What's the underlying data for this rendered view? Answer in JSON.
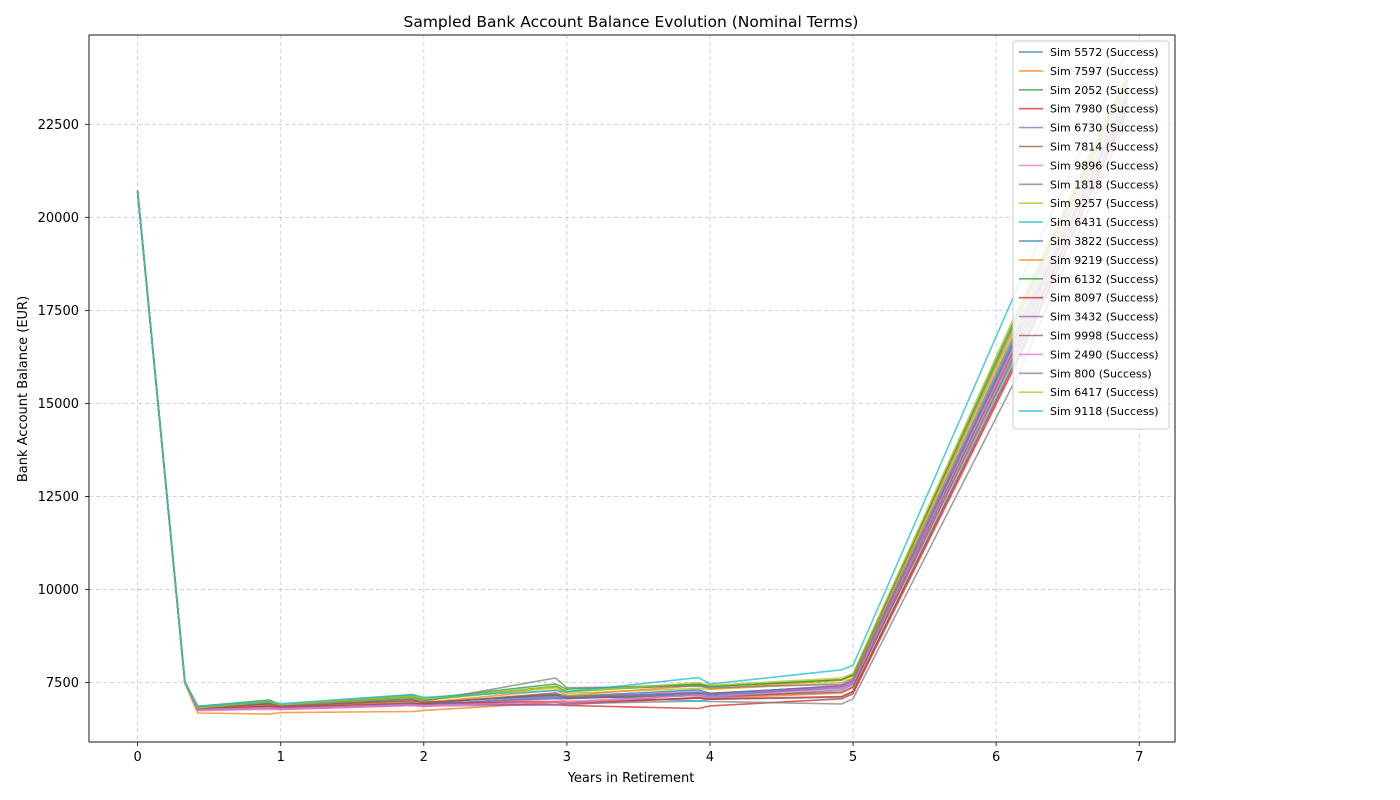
{
  "chart_data": {
    "type": "line",
    "title": "Sampled Bank Account Balance Evolution (Nominal Terms)",
    "xlabel": "Years in Retirement",
    "ylabel": "Bank Account Balance (EUR)",
    "xlim": [
      -0.34,
      7.25
    ],
    "ylim": [
      5900,
      24900
    ],
    "xticks": [
      0,
      1,
      2,
      3,
      4,
      5,
      6,
      7
    ],
    "yticks": [
      7500,
      10000,
      12500,
      15000,
      17500,
      20000,
      22500
    ],
    "grid": true,
    "legend_position": "top-right",
    "x": [
      0,
      0.33,
      0.42,
      0.92,
      1.0,
      1.92,
      2.0,
      2.92,
      3.0,
      3.92,
      4.0,
      4.92,
      5.0,
      6.17,
      6.92
    ],
    "series": [
      {
        "name": "Sim 5572 (Success)",
        "color": "#1f77b4",
        "values": [
          20700,
          7500,
          6820,
          6900,
          6850,
          6990,
          6960,
          7180,
          7120,
          7300,
          7210,
          7400,
          7540,
          17100,
          23200
        ]
      },
      {
        "name": "Sim 7597 (Success)",
        "color": "#ff7f0e",
        "values": [
          20680,
          7480,
          6680,
          6650,
          6690,
          6720,
          6750,
          6960,
          6920,
          7080,
          7060,
          7220,
          7360,
          16900,
          23100
        ]
      },
      {
        "name": "Sim 2052 (Success)",
        "color": "#2ca02c",
        "values": [
          20720,
          7520,
          6860,
          7030,
          6900,
          7160,
          7060,
          7460,
          7320,
          7460,
          7400,
          7560,
          7720,
          17500,
          23700
        ]
      },
      {
        "name": "Sim 7980 (Success)",
        "color": "#d62728",
        "values": [
          20690,
          7490,
          6780,
          6930,
          6870,
          6900,
          6930,
          6900,
          6880,
          6800,
          6870,
          7060,
          7200,
          16300,
          22900
        ]
      },
      {
        "name": "Sim 6730 (Success)",
        "color": "#9467bd",
        "values": [
          20700,
          7500,
          6760,
          6800,
          6780,
          6880,
          6870,
          6900,
          6900,
          7100,
          7080,
          7300,
          7440,
          16700,
          23000
        ]
      },
      {
        "name": "Sim 7814 (Success)",
        "color": "#8c564b",
        "values": [
          20710,
          7510,
          6800,
          6960,
          6830,
          7060,
          6930,
          7220,
          7110,
          7220,
          7200,
          7400,
          7520,
          16800,
          23200
        ]
      },
      {
        "name": "Sim 9896 (Success)",
        "color": "#e377c2",
        "values": [
          20700,
          7500,
          6740,
          6780,
          6770,
          6880,
          6850,
          7060,
          6990,
          7160,
          7110,
          7380,
          7520,
          16900,
          23300
        ]
      },
      {
        "name": "Sim 1818 (Success)",
        "color": "#7f7f7f",
        "values": [
          20700,
          7500,
          6800,
          6870,
          6840,
          6980,
          6960,
          6960,
          6930,
          7000,
          6990,
          6920,
          7060,
          15900,
          22700
        ]
      },
      {
        "name": "Sim 9257 (Success)",
        "color": "#bcbd22",
        "values": [
          20710,
          7510,
          6800,
          7000,
          6880,
          7100,
          7020,
          7360,
          7210,
          7340,
          7310,
          7500,
          7620,
          17300,
          23500
        ]
      },
      {
        "name": "Sim 6431 (Success)",
        "color": "#17becf",
        "values": [
          20700,
          7500,
          6810,
          6900,
          6870,
          6980,
          6970,
          7140,
          7150,
          7000,
          7050,
          7100,
          7260,
          16500,
          23100
        ]
      },
      {
        "name": "Sim 3822 (Success)",
        "color": "#1f77b4",
        "values": [
          20690,
          7490,
          6790,
          6850,
          6820,
          6950,
          6920,
          7080,
          7060,
          7200,
          7160,
          7350,
          7480,
          17000,
          23200
        ]
      },
      {
        "name": "Sim 9219 (Success)",
        "color": "#ff7f0e",
        "values": [
          20700,
          7500,
          6780,
          6900,
          6850,
          6980,
          6960,
          7300,
          7150,
          7420,
          7330,
          7560,
          7680,
          17400,
          23600
        ]
      },
      {
        "name": "Sim 6132 (Success)",
        "color": "#2ca02c",
        "values": [
          20710,
          7510,
          6830,
          6970,
          6900,
          7120,
          7030,
          7400,
          7260,
          7440,
          7390,
          7580,
          7700,
          17600,
          23800
        ]
      },
      {
        "name": "Sim 8097 (Success)",
        "color": "#d62728",
        "values": [
          20700,
          7500,
          6780,
          6860,
          6830,
          6930,
          6920,
          6990,
          6960,
          7080,
          7050,
          7120,
          7260,
          16400,
          22900
        ]
      },
      {
        "name": "Sim 3432 (Success)",
        "color": "#9467bd",
        "values": [
          20700,
          7500,
          6770,
          6830,
          6810,
          6920,
          6900,
          7120,
          7080,
          7250,
          7180,
          7420,
          7560,
          17000,
          23300
        ]
      },
      {
        "name": "Sim 9998 (Success)",
        "color": "#8c564b",
        "values": [
          20690,
          7490,
          6790,
          6930,
          6860,
          7020,
          6960,
          7160,
          7080,
          7150,
          7120,
          7240,
          7380,
          16600,
          23000
        ]
      },
      {
        "name": "Sim 2490 (Success)",
        "color": "#e377c2",
        "values": [
          20700,
          7500,
          6770,
          6820,
          6800,
          6900,
          6880,
          6980,
          6960,
          7160,
          7110,
          7350,
          7480,
          16900,
          23200
        ]
      },
      {
        "name": "Sim 800 (Success)",
        "color": "#7f7f7f",
        "values": [
          20700,
          7500,
          6820,
          6960,
          6880,
          7060,
          6990,
          7620,
          7360,
          7400,
          7360,
          7450,
          7600,
          17200,
          23400
        ]
      },
      {
        "name": "Sim 6417 (Success)",
        "color": "#bcbd22",
        "values": [
          20700,
          7500,
          6820,
          6980,
          6900,
          7140,
          7050,
          7380,
          7240,
          7500,
          7420,
          7620,
          7740,
          17700,
          23900
        ]
      },
      {
        "name": "Sim 9118 (Success)",
        "color": "#17becf",
        "values": [
          20720,
          7520,
          6860,
          6990,
          6930,
          7180,
          7100,
          7280,
          7250,
          7630,
          7460,
          7840,
          7960,
          18300,
          24500
        ]
      }
    ]
  }
}
